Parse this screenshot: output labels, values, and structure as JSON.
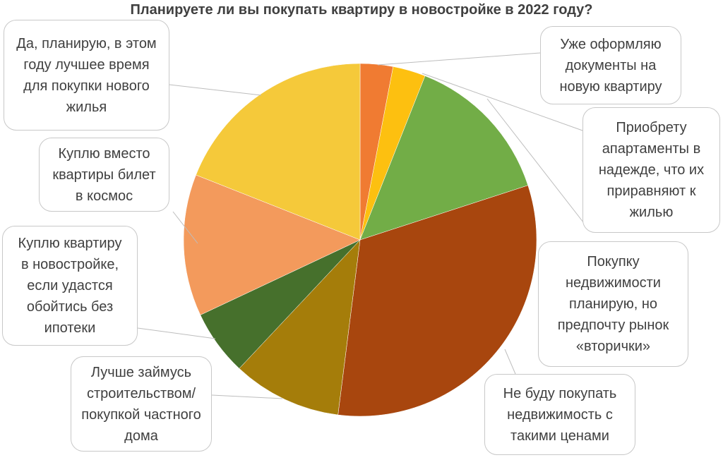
{
  "chart_data": {
    "type": "pie",
    "title": "Планируете ли вы покупать квартиру в новостройке в 2022 году?",
    "categories": [
      "Уже оформляю документы на новую квартиру",
      "Приобрету апартаменты в надежде, что их приравняют к жилью",
      "Покупку недвижимости планирую, но предпочту рынок «вторички»",
      "Не буду покупать недвижимость с такими ценами",
      "Лучше займусь строительством/ покупкой частного дома",
      "Куплю квартиру в новостройке, если удастся обойтись без ипотеки",
      "Куплю вместо квартиры билет в космос",
      "Да, планирую, в этом году лучшее время для покупки нового жилья"
    ],
    "values": [
      3,
      3,
      14,
      32,
      10,
      6,
      13,
      19
    ],
    "colors": [
      "#f07b32",
      "#fdc010",
      "#72ad47",
      "#a8460e",
      "#a57d0a",
      "#46702c",
      "#f39a5c",
      "#f5c93a"
    ]
  }
}
